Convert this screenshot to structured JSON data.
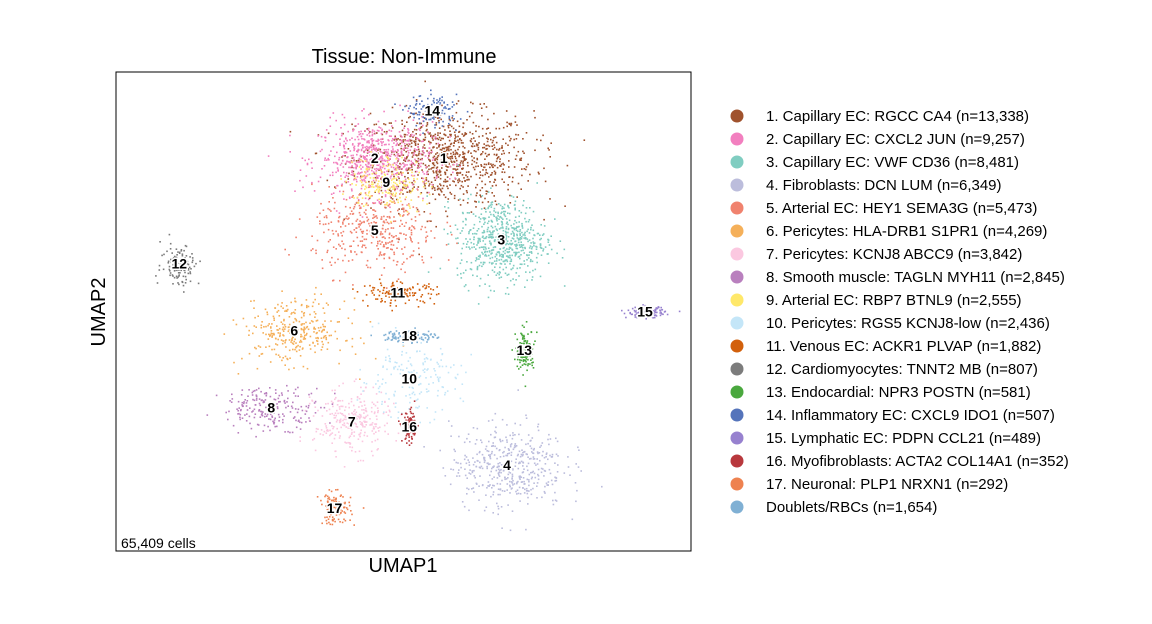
{
  "chart_data": {
    "type": "scatter",
    "title": "Tissue: Non-Immune",
    "xlabel": "UMAP1",
    "ylabel": "UMAP2",
    "annotation": "65,409 cells",
    "legend_position": "right",
    "grid": false,
    "ticks": "none",
    "xlim": [
      0,
      100
    ],
    "ylim": [
      0,
      100
    ],
    "clusters": [
      {
        "label": "1",
        "legend": "1. Capillary EC: RGCC CA4 (n=13,338)",
        "color": "#a0522d",
        "center": [
          57,
          82
        ],
        "spread": [
          14,
          9
        ]
      },
      {
        "label": "2",
        "legend": "2. Capillary EC: CXCL2 JUN (n=9,257)",
        "color": "#f27fbf",
        "center": [
          45,
          82
        ],
        "spread": [
          9,
          7
        ]
      },
      {
        "label": "3",
        "legend": "3. Capillary EC: VWF CD36 (n=8,481)",
        "color": "#80cdc1",
        "center": [
          67,
          65
        ],
        "spread": [
          7,
          8
        ]
      },
      {
        "label": "4",
        "legend": "4. Fibroblasts: DCN LUM (n=6,349)",
        "color": "#bcbddc",
        "center": [
          68,
          18
        ],
        "spread": [
          9,
          8
        ]
      },
      {
        "label": "5",
        "legend": "5. Arterial EC: HEY1 SEMA3G (n=5,473)",
        "color": "#f0826e",
        "center": [
          45,
          67
        ],
        "spread": [
          10,
          8
        ]
      },
      {
        "label": "6",
        "legend": "6. Pericytes: HLA-DRB1 S1PR1 (n=4,269)",
        "color": "#f5b05a",
        "center": [
          31,
          46
        ],
        "spread": [
          8,
          6
        ]
      },
      {
        "label": "7",
        "legend": "7. Pericytes: KCNJ8 ABCC9 (n=3,842)",
        "color": "#fbc8e0",
        "center": [
          41,
          27
        ],
        "spread": [
          6,
          6
        ]
      },
      {
        "label": "8",
        "legend": "8. Smooth muscle: TAGLN MYH11 (n=2,845)",
        "color": "#b980be",
        "center": [
          27,
          30
        ],
        "spread": [
          8,
          4
        ]
      },
      {
        "label": "9",
        "legend": "9. Arterial EC: RBP7 BTNL9 (n=2,555)",
        "color": "#ffe86a",
        "center": [
          47,
          77
        ],
        "spread": [
          6,
          5
        ]
      },
      {
        "label": "10",
        "legend": "10. Pericytes: RGS5 KCNJ8-low (n=2,436)",
        "color": "#c4e6f8",
        "center": [
          51,
          36
        ],
        "spread": [
          8,
          7
        ]
      },
      {
        "label": "11",
        "legend": "11. Venous EC: ACKR1 PLVAP (n=1,882)",
        "color": "#d2600c",
        "center": [
          49,
          54
        ],
        "spread": [
          6,
          2
        ]
      },
      {
        "label": "12",
        "legend": "12. Cardiomyocytes: TNNT2 MB (n=807)",
        "color": "#7c7c7c",
        "center": [
          11,
          60
        ],
        "spread": [
          3,
          4
        ]
      },
      {
        "label": "13",
        "legend": "13. Endocardial: NPR3 POSTN (n=581)",
        "color": "#4aa83e",
        "center": [
          71,
          42
        ],
        "spread": [
          1.5,
          4
        ]
      },
      {
        "label": "14",
        "legend": "14. Inflammatory EC: CXCL9 IDO1 (n=507)",
        "color": "#5574bb",
        "center": [
          55,
          92
        ],
        "spread": [
          4,
          3
        ]
      },
      {
        "label": "15",
        "legend": "15. Lymphatic EC: PDPN CCL21 (n=489)",
        "color": "#9781cf",
        "center": [
          92,
          50
        ],
        "spread": [
          3,
          1
        ]
      },
      {
        "label": "16",
        "legend": "16. Myofibroblasts: ACTA2 COL14A1 (n=352)",
        "color": "#b8383d",
        "center": [
          51,
          26
        ],
        "spread": [
          1.2,
          3
        ]
      },
      {
        "label": "17",
        "legend": "17. Neuronal: PLP1 NRXN1 (n=292)",
        "color": "#ee8250",
        "center": [
          38,
          9
        ],
        "spread": [
          2.5,
          3
        ]
      },
      {
        "label": "18",
        "legend": "Doublets/RBCs (n=1,654)",
        "color": "#80b0d4",
        "center": [
          51,
          45
        ],
        "spread": [
          4,
          1.2
        ]
      }
    ]
  }
}
